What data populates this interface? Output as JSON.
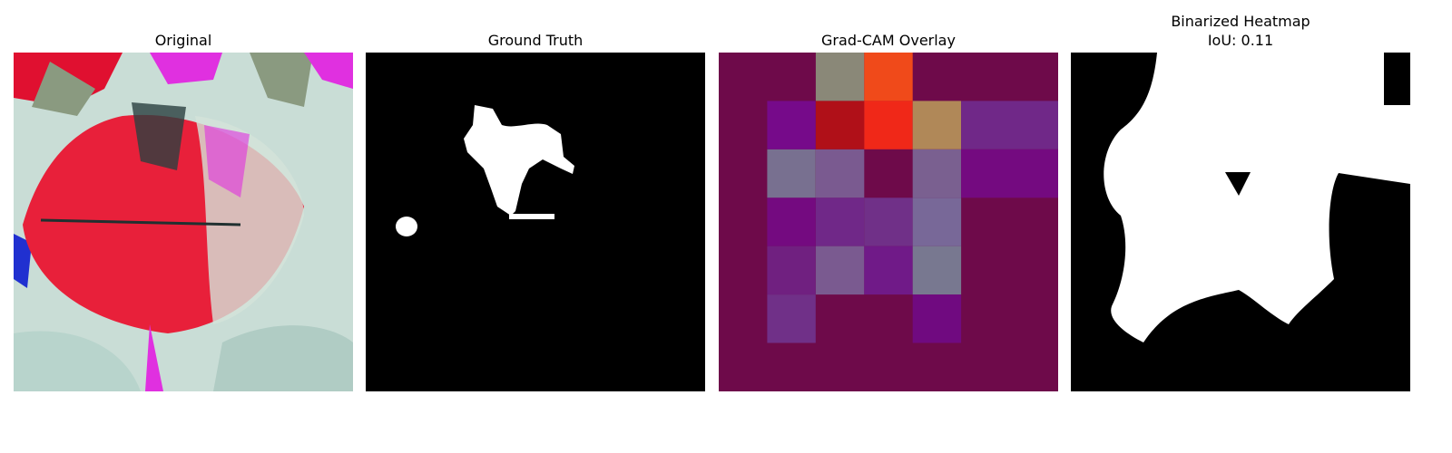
{
  "panels": [
    {
      "title_lines": [
        "Original"
      ]
    },
    {
      "title_lines": [
        "Ground Truth"
      ]
    },
    {
      "title_lines": [
        "Grad-CAM Overlay"
      ]
    },
    {
      "title_lines": [
        "Binarized Heatmap",
        "IoU: 0.11"
      ]
    }
  ]
}
